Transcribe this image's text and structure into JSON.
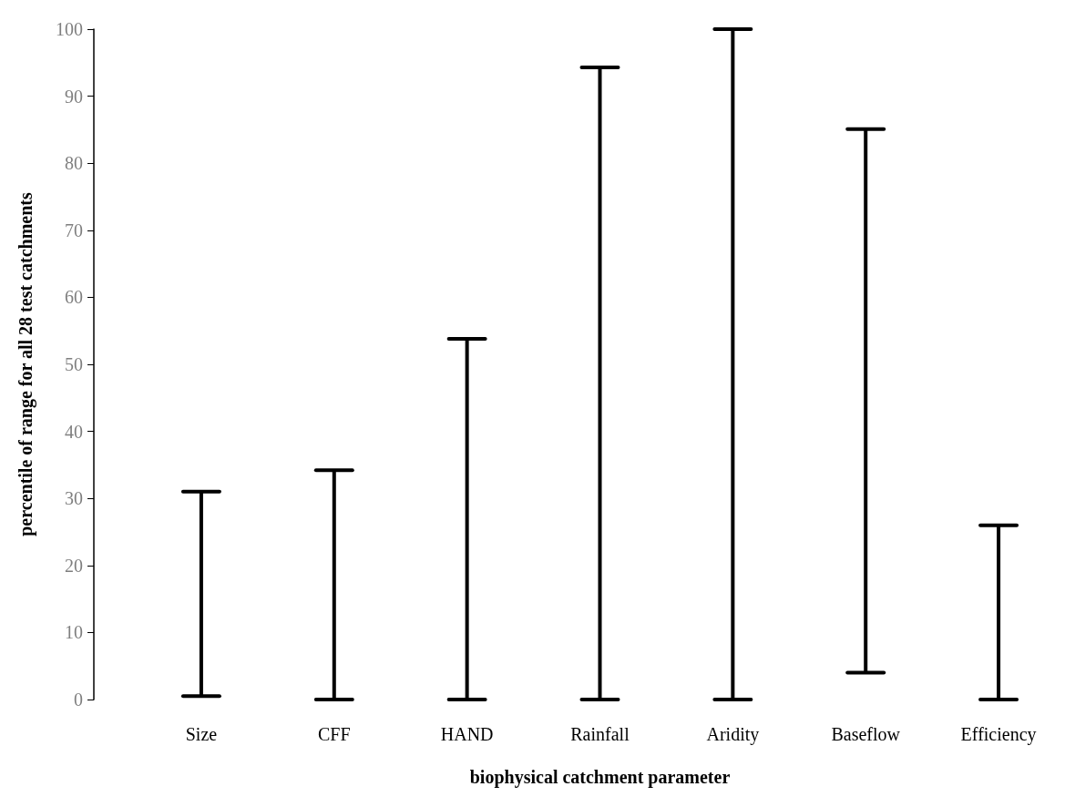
{
  "chart_data": {
    "type": "bar",
    "xlabel": "biophysical catchment parameter",
    "ylabel": "percentile of range for all 28 test catchments",
    "categories": [
      "Size",
      "CFF",
      "HAND",
      "Rainfall",
      "Aridity",
      "Baseflow",
      "Efficiency"
    ],
    "base": [
      0.5,
      0,
      0,
      0,
      0,
      4,
      0
    ],
    "values": [
      30.5,
      34.2,
      53.8,
      94.3,
      100,
      81.1,
      26
    ],
    "color": "#000000",
    "ylim": [
      0,
      100
    ],
    "yticks": [
      0,
      10,
      20,
      30,
      40,
      50,
      60,
      70,
      80,
      90,
      100
    ],
    "grid": false
  }
}
